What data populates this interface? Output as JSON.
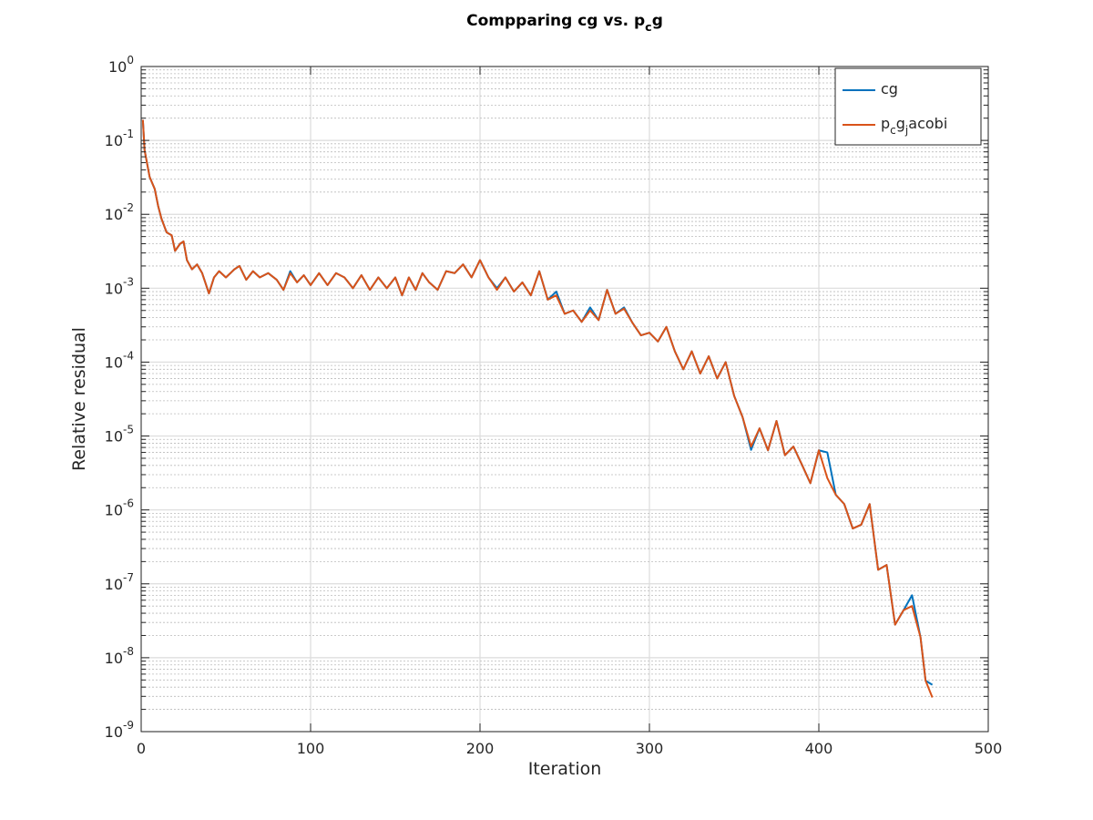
{
  "chart_data": {
    "type": "line",
    "title": [
      "Compparing cg vs. p",
      "c",
      "g"
    ],
    "xlabel": "Iteration",
    "ylabel": "Relative residual",
    "xlim": [
      0,
      500
    ],
    "xticks": [
      0,
      100,
      200,
      300,
      400,
      500
    ],
    "ylim": [
      1e-09,
      1
    ],
    "yscale": "log",
    "yticks": [
      {
        "value": 1e-09,
        "label": [
          "10",
          "-9"
        ]
      },
      {
        "value": 1e-08,
        "label": [
          "10",
          "-8"
        ]
      },
      {
        "value": 1e-07,
        "label": [
          "10",
          "-7"
        ]
      },
      {
        "value": 1e-06,
        "label": [
          "10",
          "-6"
        ]
      },
      {
        "value": 1e-05,
        "label": [
          "10",
          "-5"
        ]
      },
      {
        "value": 0.0001,
        "label": [
          "10",
          "-4"
        ]
      },
      {
        "value": 0.001,
        "label": [
          "10",
          "-3"
        ]
      },
      {
        "value": 0.01,
        "label": [
          "10",
          "-2"
        ]
      },
      {
        "value": 0.1,
        "label": [
          "10",
          "-1"
        ]
      },
      {
        "value": 1,
        "label": [
          "10",
          "0"
        ]
      }
    ],
    "grid": true,
    "minor_grid": true,
    "legend": "northeast",
    "x": [
      1,
      2,
      5,
      8,
      10,
      12,
      15,
      18,
      20,
      23,
      25,
      27,
      30,
      33,
      36,
      40,
      43,
      46,
      50,
      55,
      58,
      62,
      66,
      70,
      75,
      80,
      84,
      88,
      92,
      96,
      100,
      105,
      110,
      115,
      120,
      125,
      130,
      135,
      140,
      145,
      150,
      154,
      158,
      162,
      166,
      170,
      175,
      180,
      185,
      190,
      195,
      200,
      205,
      210,
      215,
      220,
      225,
      230,
      235,
      240,
      245,
      250,
      255,
      260,
      265,
      270,
      275,
      280,
      285,
      290,
      295,
      300,
      305,
      310,
      315,
      320,
      325,
      330,
      335,
      340,
      345,
      350,
      355,
      360,
      365,
      370,
      375,
      380,
      385,
      390,
      395,
      400,
      405,
      410,
      415,
      420,
      425,
      430,
      435,
      440,
      445,
      450,
      455,
      460,
      463,
      467
    ],
    "series": [
      {
        "name": [
          "cg"
        ],
        "color": "#0072bd",
        "values": [
          0.19,
          0.074,
          0.032,
          0.022,
          0.013,
          0.0087,
          0.0057,
          0.0052,
          0.0032,
          0.004,
          0.0043,
          0.0024,
          0.0018,
          0.0021,
          0.0016,
          0.00085,
          0.0014,
          0.0017,
          0.0014,
          0.0018,
          0.002,
          0.0013,
          0.0017,
          0.0014,
          0.0016,
          0.0013,
          0.00095,
          0.0017,
          0.0012,
          0.0015,
          0.0011,
          0.0016,
          0.0011,
          0.0016,
          0.0014,
          0.001,
          0.0015,
          0.00095,
          0.0014,
          0.001,
          0.0014,
          0.0008,
          0.0014,
          0.00095,
          0.0016,
          0.0012,
          0.00095,
          0.0017,
          0.0016,
          0.0021,
          0.0014,
          0.0024,
          0.0014,
          0.001,
          0.0014,
          0.0009,
          0.0012,
          0.0008,
          0.0017,
          0.0007,
          0.0009,
          0.00045,
          0.0005,
          0.00035,
          0.00055,
          0.00037,
          0.00095,
          0.00045,
          0.00055,
          0.00034,
          0.00023,
          0.00025,
          0.00019,
          0.0003,
          0.00014,
          8e-05,
          0.00014,
          7e-05,
          0.00012,
          6e-05,
          0.0001,
          3.5e-05,
          1.8e-05,
          6.5e-06,
          1.27e-05,
          6.4e-06,
          1.6e-05,
          5.5e-06,
          7.2e-06,
          4.1e-06,
          2.3e-06,
          6.4e-06,
          6e-06,
          1.6e-06,
          1.2e-06,
          5.6e-07,
          6.3e-07,
          1.2e-06,
          1.55e-07,
          1.8e-07,
          2.8e-08,
          4.4e-08,
          7e-08,
          1.9e-08,
          4.9e-09,
          4.3e-09
        ]
      },
      {
        "name": [
          "p",
          "c",
          "g",
          "j",
          "acobi"
        ],
        "color": "#d95319",
        "values": [
          0.19,
          0.074,
          0.032,
          0.022,
          0.013,
          0.0087,
          0.0057,
          0.0052,
          0.0032,
          0.004,
          0.0043,
          0.0024,
          0.0018,
          0.0021,
          0.0016,
          0.00085,
          0.0014,
          0.0017,
          0.0014,
          0.0018,
          0.002,
          0.0013,
          0.0017,
          0.0014,
          0.0016,
          0.0013,
          0.00095,
          0.0016,
          0.0012,
          0.0015,
          0.0011,
          0.0016,
          0.0011,
          0.0016,
          0.0014,
          0.001,
          0.0015,
          0.00095,
          0.0014,
          0.001,
          0.0014,
          0.0008,
          0.0014,
          0.00095,
          0.0016,
          0.0012,
          0.00095,
          0.0017,
          0.0016,
          0.0021,
          0.0014,
          0.0024,
          0.0014,
          0.00095,
          0.0014,
          0.0009,
          0.0012,
          0.0008,
          0.0017,
          0.0007,
          0.0008,
          0.00045,
          0.0005,
          0.00035,
          0.0005,
          0.00037,
          0.00095,
          0.00045,
          0.00053,
          0.00034,
          0.00023,
          0.00025,
          0.00019,
          0.0003,
          0.00014,
          8e-05,
          0.00014,
          7e-05,
          0.00012,
          6e-05,
          0.0001,
          3.5e-05,
          1.8e-05,
          7.2e-06,
          1.27e-05,
          6.4e-06,
          1.6e-05,
          5.5e-06,
          7.2e-06,
          4.1e-06,
          2.3e-06,
          6.4e-06,
          2.7e-06,
          1.6e-06,
          1.2e-06,
          5.6e-07,
          6.3e-07,
          1.2e-06,
          1.55e-07,
          1.8e-07,
          2.8e-08,
          4.4e-08,
          5e-08,
          1.9e-08,
          4.9e-09,
          2.9e-09
        ]
      }
    ]
  }
}
